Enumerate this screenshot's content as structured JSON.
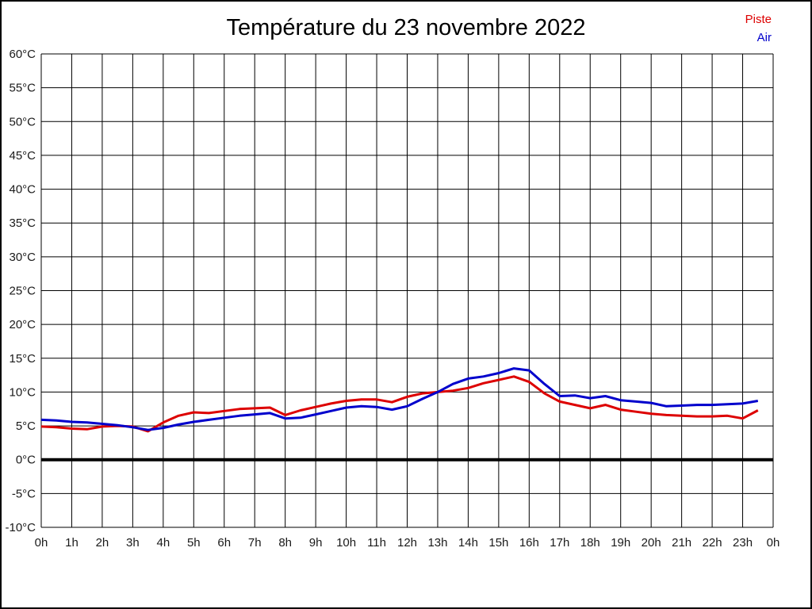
{
  "title": "Température du 23 novembre 2022",
  "legend": {
    "items": [
      {
        "label": "Piste",
        "color": "#dd0000"
      },
      {
        "label": "Air",
        "color": "#0000cc"
      }
    ],
    "position": "top-right"
  },
  "colors": {
    "piste": "#dd0000",
    "air": "#0000cc",
    "grid": "#000000",
    "zero_line": "#000000",
    "background": "#ffffff"
  },
  "chart_data": {
    "type": "line",
    "title": "Température du 23 novembre 2022",
    "xlabel": "",
    "ylabel": "",
    "grid": true,
    "legend_position": "top-right",
    "ylim": [
      -10,
      60
    ],
    "ytick_step": 5,
    "xlim_hours": [
      0,
      24
    ],
    "xtick_step_hours": 1,
    "zero_line_value": 0,
    "y_tick_labels": [
      "60°C",
      "55°C",
      "50°C",
      "45°C",
      "40°C",
      "35°C",
      "30°C",
      "25°C",
      "20°C",
      "15°C",
      "10°C",
      "5°C",
      "0°C",
      "-5°C",
      "-10°C"
    ],
    "x_tick_labels": [
      "0h",
      "1h",
      "2h",
      "3h",
      "4h",
      "5h",
      "6h",
      "7h",
      "8h",
      "9h",
      "10h",
      "11h",
      "12h",
      "13h",
      "14h",
      "15h",
      "16h",
      "17h",
      "18h",
      "19h",
      "20h",
      "21h",
      "22h",
      "23h",
      "0h"
    ],
    "x_hours": [
      0,
      0.5,
      1,
      1.5,
      2,
      2.5,
      3,
      3.5,
      4,
      4.5,
      5,
      5.5,
      6,
      6.5,
      7,
      7.5,
      8,
      8.5,
      9,
      9.5,
      10,
      10.5,
      11,
      11.5,
      12,
      12.5,
      13,
      13.5,
      14,
      14.5,
      15,
      15.5,
      16,
      16.5,
      17,
      17.5,
      18,
      18.5,
      19,
      19.5,
      20,
      20.5,
      21,
      21.5,
      22,
      22.5,
      23,
      23.5
    ],
    "series": [
      {
        "name": "Piste",
        "color": "#dd0000",
        "values": [
          4.9,
          4.8,
          4.6,
          4.5,
          4.9,
          5.0,
          4.9,
          4.2,
          5.5,
          6.5,
          7.0,
          6.9,
          7.2,
          7.5,
          7.6,
          7.7,
          6.6,
          7.3,
          7.8,
          8.3,
          8.7,
          8.9,
          8.9,
          8.5,
          9.3,
          9.8,
          10.0,
          10.2,
          10.6,
          11.3,
          11.8,
          12.3,
          11.5,
          9.8,
          8.6,
          8.1,
          7.6,
          8.1,
          7.4,
          7.1,
          6.8,
          6.6,
          6.5,
          6.4,
          6.4,
          6.5,
          6.1,
          7.3
        ]
      },
      {
        "name": "Air",
        "color": "#0000cc",
        "values": [
          5.9,
          5.8,
          5.6,
          5.5,
          5.3,
          5.1,
          4.8,
          4.4,
          4.7,
          5.2,
          5.6,
          5.9,
          6.2,
          6.5,
          6.7,
          6.9,
          6.1,
          6.2,
          6.7,
          7.2,
          7.7,
          7.9,
          7.8,
          7.4,
          7.9,
          9.0,
          10.0,
          11.2,
          12.0,
          12.3,
          12.8,
          13.5,
          13.2,
          11.2,
          9.4,
          9.5,
          9.1,
          9.4,
          8.8,
          8.6,
          8.4,
          7.9,
          8.0,
          8.1,
          8.1,
          8.2,
          8.3,
          8.7
        ]
      }
    ]
  }
}
